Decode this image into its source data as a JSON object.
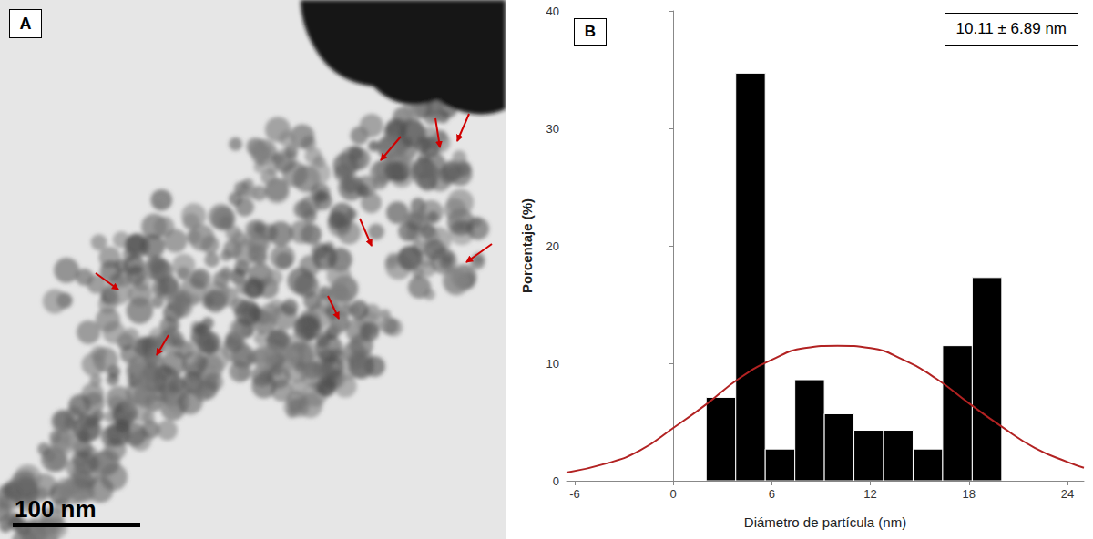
{
  "panel_a": {
    "label": "A",
    "scale_bar": "100 nm"
  },
  "chart_data": {
    "type": "histogram",
    "panel_label": "B",
    "annotation": "10.11 ± 6.89 nm",
    "x_label": "Diámetro de partícula (nm)",
    "y_label": "Porcentaje (%)",
    "bins": [
      2.0,
      3.8,
      5.6,
      7.4,
      9.2,
      11.0,
      12.8,
      14.6,
      16.4,
      18.2,
      20.0
    ],
    "values": [
      7.1,
      34.7,
      2.7,
      8.6,
      5.7,
      4.3,
      4.3,
      2.7,
      11.5,
      17.3
    ],
    "color": "#000000",
    "curve": {
      "type": "line",
      "color": "#b22222",
      "x": [
        -6.5,
        -4,
        -2,
        0,
        2,
        4,
        6,
        8,
        10,
        12,
        14,
        16,
        18,
        20,
        22,
        24,
        25
      ],
      "values": [
        0.7,
        1.5,
        2.6,
        4.5,
        6.5,
        8.7,
        10.3,
        11.3,
        11.5,
        11.3,
        10.3,
        8.7,
        6.6,
        4.6,
        2.8,
        1.6,
        1.1
      ]
    },
    "xlim": [
      -6.5,
      25
    ],
    "xticks": [
      -6,
      0,
      6,
      12,
      18,
      24
    ],
    "ylim": [
      0,
      40
    ],
    "yticks": [
      0,
      10,
      20,
      30,
      40
    ],
    "grid": false
  }
}
